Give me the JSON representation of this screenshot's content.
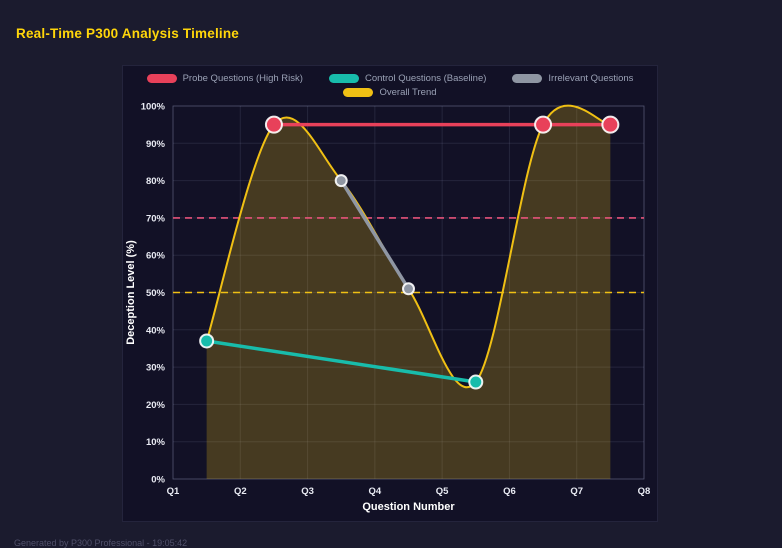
{
  "page": {
    "title": "Real-Time P300 Analysis Timeline",
    "footer": "Generated by P300 Professional - 19:05:42"
  },
  "chart_data": {
    "type": "line",
    "title": "Real-Time P300 Analysis Timeline",
    "xlabel": "Question Number",
    "ylabel": "Deception Level (%)",
    "xlim": [
      1,
      8
    ],
    "ylim": [
      0,
      100
    ],
    "x_ticks": [
      "Q1",
      "Q2",
      "Q3",
      "Q4",
      "Q5",
      "Q6",
      "Q7",
      "Q8"
    ],
    "x_tick_values": [
      1,
      2,
      3,
      4,
      5,
      6,
      7,
      8
    ],
    "y_ticks": [
      "0%",
      "10%",
      "20%",
      "30%",
      "40%",
      "50%",
      "60%",
      "70%",
      "80%",
      "90%",
      "100%"
    ],
    "y_tick_values": [
      0,
      10,
      20,
      30,
      40,
      50,
      60,
      70,
      80,
      90,
      100
    ],
    "grid": true,
    "legend_position": "top",
    "series": [
      {
        "name": "Probe Questions (High Risk)",
        "color": "#e8415a",
        "x": [
          2.5,
          6.5,
          7.5
        ],
        "y": [
          95,
          95,
          95
        ],
        "line_width": 3.5,
        "marker_radius": 8,
        "smooth": false,
        "area_fill": false
      },
      {
        "name": "Control Questions (Baseline)",
        "color": "#18bcab",
        "x": [
          1.5,
          5.5
        ],
        "y": [
          37,
          26
        ],
        "line_width": 3.5,
        "marker_radius": 6.5,
        "smooth": false,
        "area_fill": false
      },
      {
        "name": "Irrelevant Questions",
        "color": "#8f96a3",
        "x": [
          3.5,
          4.5
        ],
        "y": [
          80,
          51
        ],
        "line_width": 3.5,
        "marker_radius": 5.5,
        "smooth": false,
        "area_fill": false
      },
      {
        "name": "Overall Trend",
        "color": "#f0c014",
        "x": [
          1.5,
          2.5,
          3.5,
          4.5,
          5.5,
          6.5,
          7.5
        ],
        "y": [
          37,
          95,
          80,
          51,
          26,
          95,
          95
        ],
        "line_width": 2,
        "marker_radius": 0,
        "smooth": true,
        "area_fill": true,
        "fill_opacity": 0.24
      }
    ],
    "draw_order": [
      3,
      0,
      1,
      2
    ],
    "reference_lines": [
      {
        "y": 70,
        "color": "#e5537a",
        "style": "dashed",
        "width": 1.6
      },
      {
        "y": 50,
        "color": "#f0c014",
        "style": "dashed",
        "width": 1.6
      }
    ],
    "colors": {
      "page_background": "#1b1b2e",
      "panel_background": "#121126",
      "grid": "rgba(155,165,200,0.14)",
      "plot_border": "rgba(155,165,200,0.28)",
      "tick_label": "#e9ebf3",
      "axis_title": "#ffffff",
      "legend_label": "#9aa1b5",
      "title": "#ffd60a"
    }
  }
}
